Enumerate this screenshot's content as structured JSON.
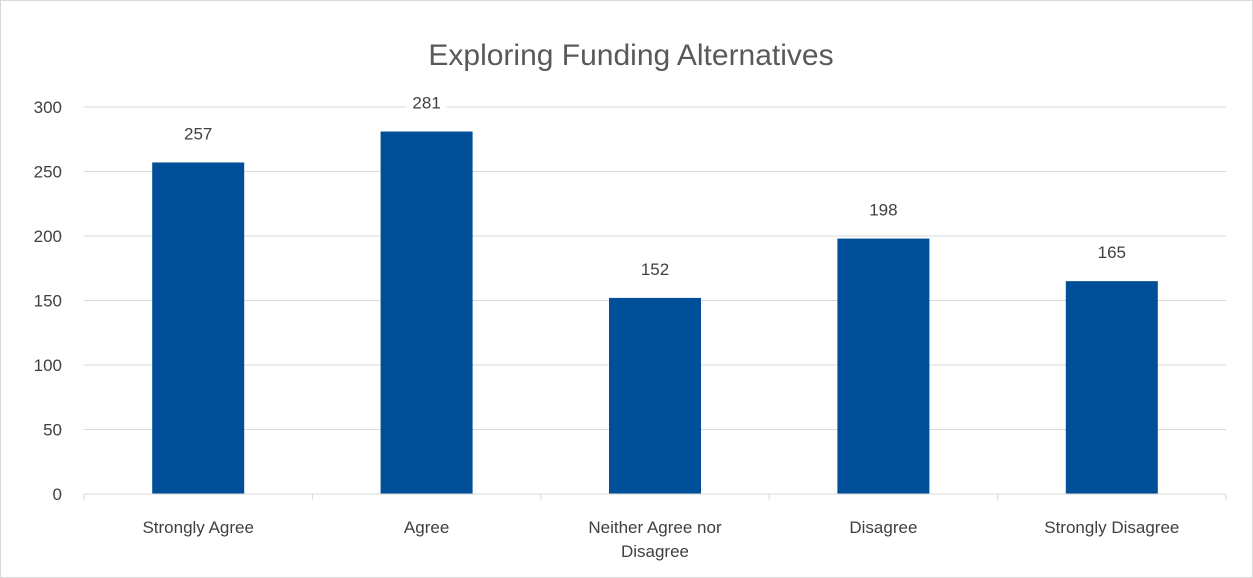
{
  "chart_data": {
    "type": "bar",
    "title": "Exploring Funding Alternatives",
    "xlabel": "",
    "ylabel": "",
    "categories": [
      "Strongly Agree",
      "Agree",
      "Neither Agree nor Disagree",
      "Disagree",
      "Strongly Disagree"
    ],
    "category_lines": [
      [
        "Strongly Agree"
      ],
      [
        "Agree"
      ],
      [
        "Neither Agree nor",
        "Disagree"
      ],
      [
        "Disagree"
      ],
      [
        "Strongly Disagree"
      ]
    ],
    "values": [
      257,
      281,
      152,
      198,
      165
    ],
    "data_labels": [
      "257",
      "281",
      "152",
      "198",
      "165"
    ],
    "ylim": [
      0,
      300
    ],
    "yticks": [
      0,
      50,
      100,
      150,
      200,
      250,
      300
    ],
    "grid": true,
    "legend": "none",
    "bar_color": "#004f98",
    "grid_color": "#d9d9d9"
  }
}
